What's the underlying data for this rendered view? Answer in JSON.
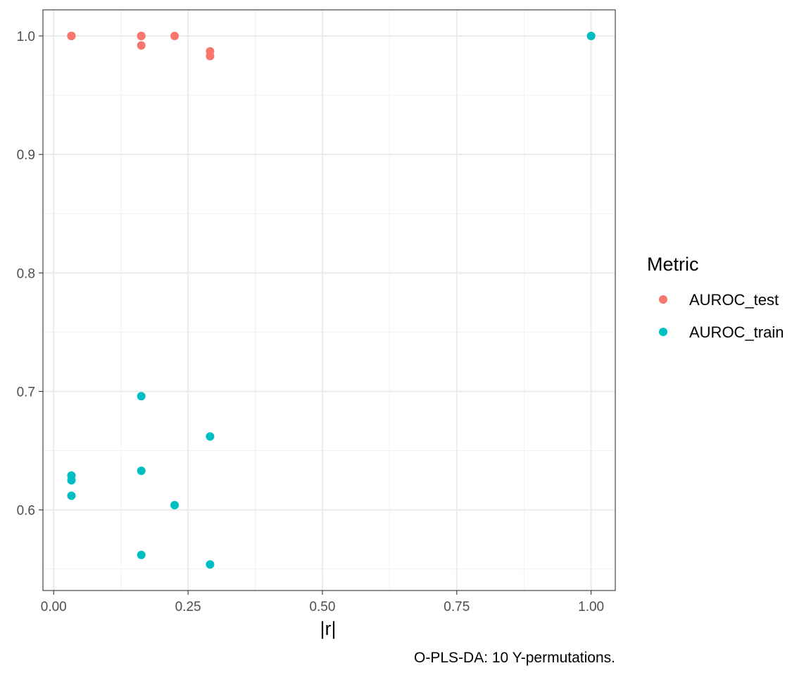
{
  "chart_data": {
    "type": "scatter",
    "title": "",
    "xlabel": "|r|",
    "ylabel": "",
    "caption": "O-PLS-DA: 10 Y-permutations.",
    "xlim": [
      -0.02,
      1.045
    ],
    "ylim": [
      0.532,
      1.022
    ],
    "x_ticks": [
      0.0,
      0.25,
      0.5,
      0.75,
      1.0
    ],
    "x_tick_labels": [
      "0.00",
      "0.25",
      "0.50",
      "0.75",
      "1.00"
    ],
    "y_ticks": [
      0.6,
      0.7,
      0.8,
      0.9,
      1.0
    ],
    "y_tick_labels": [
      "0.6",
      "0.7",
      "0.8",
      "0.9",
      "1.0"
    ],
    "grid": true,
    "legend": {
      "title": "Metric",
      "position": "right"
    },
    "series": [
      {
        "name": "AUROC_test",
        "color": "#F8766D",
        "points": [
          {
            "x": 0.033,
            "y": 1.0
          },
          {
            "x": 0.033,
            "y": 1.0
          },
          {
            "x": 0.033,
            "y": 1.0
          },
          {
            "x": 0.163,
            "y": 1.0
          },
          {
            "x": 0.163,
            "y": 0.992
          },
          {
            "x": 0.163,
            "y": 1.0
          },
          {
            "x": 0.225,
            "y": 1.0
          },
          {
            "x": 0.291,
            "y": 0.987
          },
          {
            "x": 0.291,
            "y": 0.983
          },
          {
            "x": 1.0,
            "y": 1.0
          }
        ]
      },
      {
        "name": "AUROC_train",
        "color": "#00BFC4",
        "points": [
          {
            "x": 0.033,
            "y": 0.629
          },
          {
            "x": 0.033,
            "y": 0.625
          },
          {
            "x": 0.033,
            "y": 0.612
          },
          {
            "x": 0.163,
            "y": 0.696
          },
          {
            "x": 0.163,
            "y": 0.633
          },
          {
            "x": 0.163,
            "y": 0.562
          },
          {
            "x": 0.225,
            "y": 0.604
          },
          {
            "x": 0.291,
            "y": 0.662
          },
          {
            "x": 0.291,
            "y": 0.554
          },
          {
            "x": 1.0,
            "y": 1.0
          }
        ]
      }
    ]
  }
}
